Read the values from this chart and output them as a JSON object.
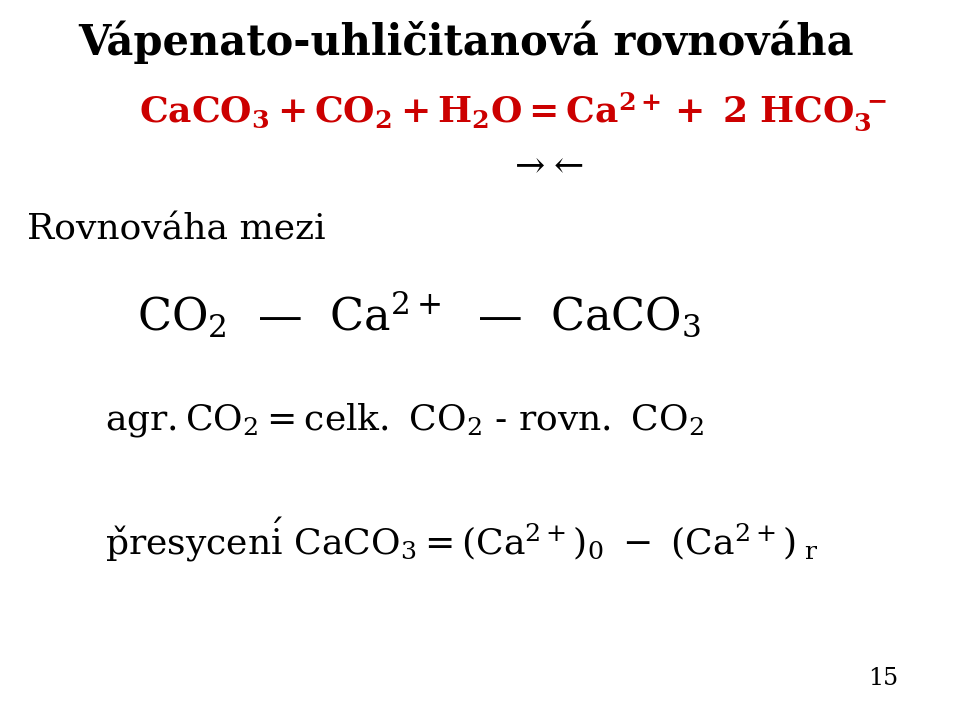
{
  "title": "Vápenato-uhličitanová rovnováha",
  "bg_color": "#ffffff",
  "eq_color": "#cc0000",
  "text_color": "#000000",
  "page_number": "15",
  "title_fontsize": 30,
  "body_fontsize": 26,
  "eq_fontsize": 26,
  "small_fontsize": 17
}
